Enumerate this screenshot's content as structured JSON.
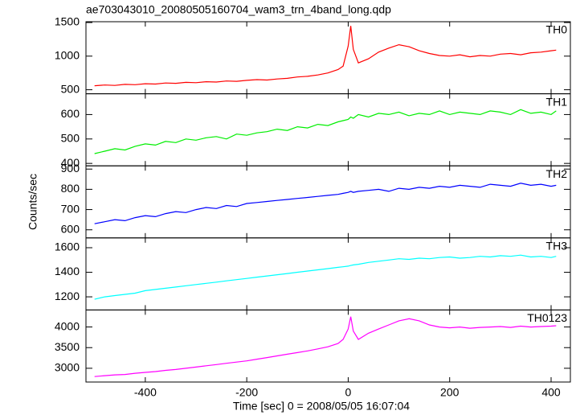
{
  "title": "ae703043010_20080505160704_wam3_trn_4band_long.qdp",
  "y_label": "Counts/sec",
  "x_label": "Time [sec] 0 = 2008/05/05 16:07:04",
  "xlim": [
    -517,
    438
  ],
  "xticks": [
    -400,
    -200,
    0,
    200,
    400
  ],
  "chart_data": [
    {
      "type": "line",
      "ylim": [
        440,
        1512
      ],
      "yticks": [
        500,
        1000,
        1500
      ],
      "x": [
        -500,
        -480,
        -460,
        -440,
        -420,
        -400,
        -380,
        -360,
        -340,
        -320,
        -300,
        -280,
        -260,
        -240,
        -220,
        -200,
        -180,
        -160,
        -140,
        -120,
        -100,
        -80,
        -60,
        -40,
        -20,
        -10,
        0,
        5,
        10,
        20,
        40,
        60,
        80,
        100,
        120,
        140,
        160,
        180,
        200,
        220,
        240,
        260,
        280,
        300,
        320,
        340,
        360,
        380,
        400,
        410
      ],
      "series": [
        {
          "name": "TH0",
          "color": "#ff0000",
          "values": [
            560,
            570,
            565,
            580,
            575,
            590,
            585,
            600,
            595,
            610,
            605,
            620,
            615,
            630,
            625,
            640,
            650,
            645,
            660,
            670,
            690,
            700,
            720,
            750,
            800,
            850,
            1150,
            1450,
            1100,
            900,
            960,
            1060,
            1120,
            1170,
            1140,
            1080,
            1040,
            1010,
            1000,
            1020,
            990,
            1010,
            1000,
            1030,
            1040,
            1020,
            1050,
            1060,
            1080,
            1090
          ]
        }
      ]
    },
    {
      "type": "line",
      "ylim": [
        390,
        685
      ],
      "yticks": [
        400,
        500,
        600
      ],
      "x": [
        -500,
        -480,
        -460,
        -440,
        -420,
        -400,
        -380,
        -360,
        -340,
        -320,
        -300,
        -280,
        -260,
        -240,
        -220,
        -200,
        -180,
        -160,
        -140,
        -120,
        -100,
        -80,
        -60,
        -40,
        -20,
        -10,
        0,
        5,
        10,
        20,
        40,
        60,
        80,
        100,
        120,
        140,
        160,
        180,
        200,
        220,
        240,
        260,
        280,
        300,
        320,
        340,
        360,
        380,
        400,
        410
      ],
      "series": [
        {
          "name": "TH1",
          "color": "#00ee00",
          "values": [
            440,
            450,
            460,
            455,
            470,
            480,
            475,
            490,
            485,
            500,
            495,
            505,
            510,
            500,
            520,
            515,
            525,
            530,
            540,
            535,
            550,
            545,
            560,
            555,
            570,
            575,
            580,
            590,
            585,
            600,
            590,
            605,
            600,
            610,
            595,
            605,
            600,
            615,
            600,
            610,
            605,
            600,
            615,
            610,
            600,
            620,
            605,
            610,
            600,
            615
          ]
        }
      ]
    },
    {
      "type": "line",
      "ylim": [
        560,
        916
      ],
      "yticks": [
        600,
        700,
        800,
        900
      ],
      "x": [
        -500,
        -480,
        -460,
        -440,
        -420,
        -400,
        -380,
        -360,
        -340,
        -320,
        -300,
        -280,
        -260,
        -240,
        -220,
        -200,
        -180,
        -160,
        -140,
        -120,
        -100,
        -80,
        -60,
        -40,
        -20,
        -10,
        0,
        5,
        10,
        20,
        40,
        60,
        80,
        100,
        120,
        140,
        160,
        180,
        200,
        220,
        240,
        260,
        280,
        300,
        320,
        340,
        360,
        380,
        400,
        410
      ],
      "series": [
        {
          "name": "TH2",
          "color": "#0000ff",
          "values": [
            630,
            640,
            650,
            645,
            660,
            670,
            665,
            680,
            690,
            685,
            700,
            710,
            705,
            720,
            715,
            730,
            735,
            740,
            745,
            750,
            755,
            760,
            765,
            770,
            775,
            780,
            785,
            790,
            785,
            790,
            795,
            800,
            790,
            805,
            800,
            810,
            805,
            815,
            810,
            820,
            815,
            810,
            825,
            820,
            815,
            830,
            820,
            825,
            815,
            820
          ]
        }
      ]
    },
    {
      "type": "line",
      "ylim": [
        1093,
        1680
      ],
      "yticks": [
        1200,
        1400,
        1600
      ],
      "x": [
        -500,
        -480,
        -460,
        -440,
        -420,
        -400,
        -380,
        -360,
        -340,
        -320,
        -300,
        -280,
        -260,
        -240,
        -220,
        -200,
        -180,
        -160,
        -140,
        -120,
        -100,
        -80,
        -60,
        -40,
        -20,
        -10,
        0,
        5,
        10,
        20,
        40,
        60,
        80,
        100,
        120,
        140,
        160,
        180,
        200,
        220,
        240,
        260,
        280,
        300,
        320,
        340,
        360,
        380,
        400,
        410
      ],
      "series": [
        {
          "name": "TH3",
          "color": "#00ffff",
          "values": [
            1180,
            1200,
            1210,
            1220,
            1230,
            1250,
            1260,
            1270,
            1280,
            1290,
            1300,
            1310,
            1320,
            1330,
            1340,
            1350,
            1360,
            1370,
            1380,
            1390,
            1400,
            1410,
            1420,
            1430,
            1440,
            1445,
            1450,
            1455,
            1460,
            1465,
            1480,
            1490,
            1500,
            1510,
            1505,
            1515,
            1510,
            1520,
            1525,
            1515,
            1520,
            1530,
            1525,
            1535,
            1530,
            1540,
            1525,
            1530,
            1520,
            1530
          ]
        }
      ]
    },
    {
      "type": "line",
      "ylim": [
        2667,
        4412
      ],
      "yticks": [
        3000,
        3500,
        4000
      ],
      "x": [
        -500,
        -480,
        -460,
        -440,
        -420,
        -400,
        -380,
        -360,
        -340,
        -320,
        -300,
        -280,
        -260,
        -240,
        -220,
        -200,
        -180,
        -160,
        -140,
        -120,
        -100,
        -80,
        -60,
        -40,
        -20,
        -10,
        0,
        5,
        10,
        20,
        40,
        60,
        80,
        100,
        120,
        140,
        160,
        180,
        200,
        220,
        240,
        260,
        280,
        300,
        320,
        340,
        360,
        380,
        400,
        410
      ],
      "series": [
        {
          "name": "TH0123",
          "color": "#ff00ff",
          "values": [
            2800,
            2820,
            2840,
            2850,
            2880,
            2900,
            2920,
            2950,
            2970,
            3000,
            3030,
            3060,
            3090,
            3120,
            3150,
            3180,
            3220,
            3260,
            3300,
            3340,
            3380,
            3420,
            3470,
            3520,
            3600,
            3700,
            3950,
            4250,
            3900,
            3700,
            3850,
            3950,
            4050,
            4150,
            4200,
            4150,
            4050,
            4000,
            3980,
            4000,
            3970,
            3990,
            4000,
            4010,
            3990,
            4020,
            4000,
            4010,
            4020,
            4030
          ]
        }
      ]
    }
  ]
}
